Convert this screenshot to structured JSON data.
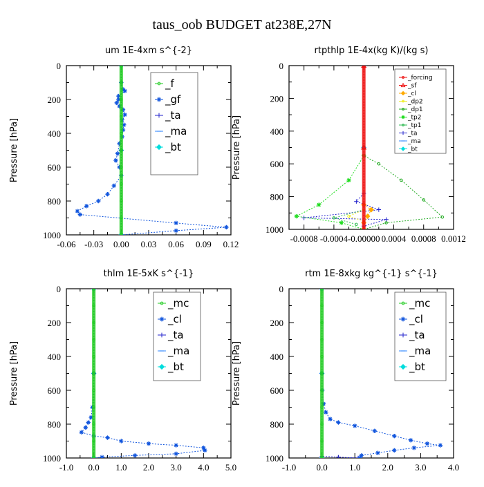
{
  "figure": {
    "title": "taus_oob  BUDGET at238E,27N"
  },
  "chart_data": [
    {
      "type": "line",
      "title": "um   1E-4xm s^{-2}",
      "xlabel": "",
      "ylabel": "Pressure [hPa]",
      "xlim": [
        -0.06,
        0.12
      ],
      "ylim": [
        1000,
        0
      ],
      "x_ticks": [
        "-0.06",
        "-0.03",
        "0.00",
        "0.03",
        "0.06",
        "0.09",
        "0.12"
      ],
      "y_ticks": [
        "0",
        "200",
        "400",
        "600",
        "800",
        "1000"
      ],
      "legend_position": "top-right",
      "legend_size": "large",
      "series": [
        {
          "name": "_f",
          "color": "#22cc22",
          "marker": "circle",
          "points": [
            [
              0,
              0
            ],
            [
              0,
              100
            ],
            [
              0,
              200
            ],
            [
              0,
              300
            ],
            [
              0,
              400
            ],
            [
              0,
              500
            ],
            [
              0,
              600
            ],
            [
              0,
              700
            ],
            [
              0,
              800
            ],
            [
              0,
              900
            ],
            [
              0,
              1000
            ]
          ]
        },
        {
          "name": "_gf",
          "color": "#1155dd",
          "marker": "star",
          "points": [
            [
              0,
              100
            ],
            [
              0.002,
              140
            ],
            [
              0.004,
              150
            ],
            [
              -0.003,
              180
            ],
            [
              -0.003,
              200
            ],
            [
              -0.005,
              220
            ],
            [
              -0.002,
              240
            ],
            [
              0.002,
              260
            ],
            [
              0.004,
              290
            ],
            [
              0.001,
              320
            ],
            [
              0.003,
              350
            ],
            [
              0.002,
              380
            ],
            [
              0.001,
              420
            ],
            [
              -0.002,
              460
            ],
            [
              -0.004,
              520
            ],
            [
              -0.006,
              560
            ],
            [
              -0.002,
              600
            ],
            [
              0,
              650
            ],
            [
              -0.008,
              710
            ],
            [
              -0.015,
              760
            ],
            [
              -0.025,
              800
            ],
            [
              -0.038,
              830
            ],
            [
              -0.048,
              860
            ],
            [
              -0.045,
              880
            ],
            [
              0.06,
              930
            ],
            [
              0.115,
              955
            ],
            [
              0.06,
              975
            ],
            [
              0,
              1000
            ]
          ]
        },
        {
          "name": "_ta",
          "color": "#2222cc",
          "marker": "plus",
          "points": [
            [
              0,
              0
            ],
            [
              0,
              500
            ],
            [
              0,
              1000
            ]
          ]
        },
        {
          "name": "_ma",
          "color": "#3388ff",
          "marker": "dash",
          "points": [
            [
              0,
              0
            ],
            [
              0,
              500
            ],
            [
              0,
              1000
            ]
          ]
        },
        {
          "name": "_bt",
          "color": "#00dddd",
          "marker": "diamond",
          "points": [
            [
              0,
              0
            ],
            [
              0,
              500
            ],
            [
              0,
              1000
            ]
          ]
        }
      ]
    },
    {
      "type": "line",
      "title": "rtpthlp   1E-4x(kg K)/(kg s)",
      "xlabel": "",
      "ylabel": "Pressure [hPa]",
      "xlim": [
        -0.001,
        0.0012
      ],
      "ylim": [
        1000,
        0
      ],
      "x_ticks": [
        "-0.0008",
        "-0.0004",
        "-0.00000",
        "0.0004",
        "0.0008",
        "0.0012"
      ],
      "x_tick_values": [
        -0.0008,
        -0.0004,
        0,
        0.0004,
        0.0008,
        0.0012
      ],
      "y_ticks": [
        "0",
        "200",
        "400",
        "600",
        "800",
        "1000"
      ],
      "legend_position": "top-right",
      "legend_size": "small",
      "series": [
        {
          "name": "_forcing",
          "color": "#ee1111",
          "marker": "circle",
          "points": [
            [
              0,
              0
            ],
            [
              0,
              500
            ],
            [
              0,
              1000
            ]
          ]
        },
        {
          "name": "_sf",
          "color": "#ee1111",
          "marker": "triangle",
          "points": [
            [
              0,
              0
            ],
            [
              0,
              500
            ],
            [
              0,
              1000
            ]
          ]
        },
        {
          "name": "_cl",
          "color": "#ffaa00",
          "marker": "diamond",
          "points": [
            [
              0,
              850
            ],
            [
              0.0001,
              880
            ],
            [
              5e-05,
              920
            ],
            [
              0,
              960
            ],
            [
              0,
              1000
            ]
          ]
        },
        {
          "name": "_dp2",
          "color": "#eeee22",
          "marker": "circle",
          "points": [
            [
              0,
              880
            ],
            [
              -0.0002,
              920
            ],
            [
              0,
              950
            ]
          ]
        },
        {
          "name": "_dp1",
          "color": "#22aa22",
          "marker": "circle",
          "points": [
            [
              0,
              0
            ],
            [
              0,
              550
            ],
            [
              0.0002,
              600
            ],
            [
              0.0005,
              700
            ],
            [
              0.0008,
              820
            ],
            [
              0.00105,
              925
            ],
            [
              0.0003,
              960
            ],
            [
              0,
              1000
            ]
          ]
        },
        {
          "name": "_tp2",
          "color": "#22dd22",
          "marker": "star",
          "points": [
            [
              0,
              550
            ],
            [
              -0.0002,
              700
            ],
            [
              -0.0006,
              850
            ],
            [
              -0.0009,
              920
            ],
            [
              -0.0003,
              960
            ],
            [
              0,
              1000
            ]
          ]
        },
        {
          "name": "_tp1",
          "color": "#33bb55",
          "marker": "circle",
          "points": [
            [
              0,
              880
            ],
            [
              -0.0004,
              930
            ],
            [
              -0.0001,
              970
            ]
          ]
        },
        {
          "name": "_ta",
          "color": "#2222cc",
          "marker": "plus",
          "points": [
            [
              0,
              780
            ],
            [
              -0.0001,
              830
            ],
            [
              0.0002,
              880
            ],
            [
              -0.0008,
              930
            ],
            [
              0.0003,
              940
            ],
            [
              0,
              980
            ]
          ]
        },
        {
          "name": "_ma",
          "color": "#3388ff",
          "marker": "dash",
          "points": [
            [
              0,
              0
            ],
            [
              0,
              500
            ],
            [
              0,
              1000
            ]
          ]
        },
        {
          "name": "_bt",
          "color": "#00dddd",
          "marker": "diamond",
          "points": [
            [
              0,
              0
            ],
            [
              0,
              500
            ],
            [
              0,
              1000
            ]
          ]
        }
      ]
    },
    {
      "type": "line",
      "title": "thlm   1E-5xK s^{-1}",
      "xlabel": "",
      "ylabel": "Pressure [hPa]",
      "xlim": [
        -1.0,
        5.0
      ],
      "ylim": [
        1000,
        0
      ],
      "x_ticks": [
        "-1.0",
        "0.0",
        "1.0",
        "2.0",
        "3.0",
        "4.0",
        "5.0"
      ],
      "y_ticks": [
        "0",
        "200",
        "400",
        "600",
        "800",
        "1000"
      ],
      "legend_position": "top-right",
      "legend_size": "large",
      "series": [
        {
          "name": "_mc",
          "color": "#22cc22",
          "marker": "circle",
          "points": [
            [
              0,
              0
            ],
            [
              0,
              100
            ],
            [
              0,
              200
            ],
            [
              0,
              300
            ],
            [
              0,
              400
            ],
            [
              0,
              500
            ],
            [
              0,
              600
            ],
            [
              0,
              700
            ],
            [
              0,
              800
            ],
            [
              0,
              900
            ],
            [
              0,
              1000
            ]
          ]
        },
        {
          "name": "_cl",
          "color": "#1155dd",
          "marker": "star",
          "points": [
            [
              0,
              0
            ],
            [
              0,
              500
            ],
            [
              -0.05,
              700
            ],
            [
              -0.1,
              760
            ],
            [
              -0.2,
              790
            ],
            [
              -0.3,
              820
            ],
            [
              -0.45,
              848
            ],
            [
              0,
              870
            ],
            [
              0.5,
              880
            ],
            [
              1.0,
              900
            ],
            [
              2.0,
              915
            ],
            [
              3.0,
              925
            ],
            [
              4.0,
              940
            ],
            [
              4.05,
              955
            ],
            [
              3.0,
              975
            ],
            [
              1.5,
              985
            ],
            [
              0.3,
              995
            ],
            [
              0,
              1000
            ]
          ]
        },
        {
          "name": "_ta",
          "color": "#2222cc",
          "marker": "plus",
          "points": [
            [
              0,
              0
            ],
            [
              0,
              500
            ],
            [
              0,
              1000
            ]
          ]
        },
        {
          "name": "_ma",
          "color": "#3388ff",
          "marker": "dash",
          "points": [
            [
              0,
              0
            ],
            [
              0,
              500
            ],
            [
              0,
              1000
            ]
          ]
        },
        {
          "name": "_bt",
          "color": "#00dddd",
          "marker": "diamond",
          "points": [
            [
              0,
              0
            ],
            [
              0,
              500
            ],
            [
              0,
              1000
            ]
          ]
        }
      ]
    },
    {
      "type": "line",
      "title": "rtm   1E-8xkg kg^{-1} s^{-1}",
      "xlabel": "",
      "ylabel": "Pressure [hPa]",
      "xlim": [
        -1.0,
        4.0
      ],
      "ylim": [
        1000,
        0
      ],
      "x_ticks": [
        "-1.0",
        "0.0",
        "1.0",
        "2.0",
        "3.0",
        "4.0"
      ],
      "y_ticks": [
        "0",
        "200",
        "400",
        "600",
        "800",
        "1000"
      ],
      "legend_position": "top-right",
      "legend_size": "large",
      "series": [
        {
          "name": "_mc",
          "color": "#22cc22",
          "marker": "circle",
          "points": [
            [
              0,
              0
            ],
            [
              0,
              100
            ],
            [
              0,
              200
            ],
            [
              0,
              300
            ],
            [
              0,
              400
            ],
            [
              0,
              500
            ],
            [
              0,
              600
            ],
            [
              0,
              700
            ],
            [
              0,
              800
            ],
            [
              0,
              900
            ],
            [
              0,
              1000
            ]
          ]
        },
        {
          "name": "_cl",
          "color": "#1155dd",
          "marker": "star",
          "points": [
            [
              0,
              0
            ],
            [
              0,
              500
            ],
            [
              0.01,
              600
            ],
            [
              0.05,
              680
            ],
            [
              0.12,
              730
            ],
            [
              0.25,
              770
            ],
            [
              0.5,
              790
            ],
            [
              1.0,
              810
            ],
            [
              1.6,
              840
            ],
            [
              2.2,
              870
            ],
            [
              2.7,
              895
            ],
            [
              3.2,
              915
            ],
            [
              3.6,
              925
            ],
            [
              2.8,
              940
            ],
            [
              2.2,
              955
            ],
            [
              1.7,
              970
            ],
            [
              1.2,
              985
            ],
            [
              1.15,
              1000
            ]
          ]
        },
        {
          "name": "_ta",
          "color": "#2222cc",
          "marker": "plus",
          "points": [
            [
              0,
              0
            ],
            [
              0,
              500
            ],
            [
              0,
              990
            ],
            [
              0.5,
              995
            ],
            [
              1.1,
              1000
            ]
          ]
        },
        {
          "name": "_ma",
          "color": "#3388ff",
          "marker": "dash",
          "points": [
            [
              0,
              0
            ],
            [
              0,
              500
            ],
            [
              0,
              1000
            ]
          ]
        },
        {
          "name": "_bt",
          "color": "#00dddd",
          "marker": "diamond",
          "points": [
            [
              0,
              0
            ],
            [
              0,
              500
            ],
            [
              0,
              1000
            ]
          ]
        }
      ]
    }
  ]
}
